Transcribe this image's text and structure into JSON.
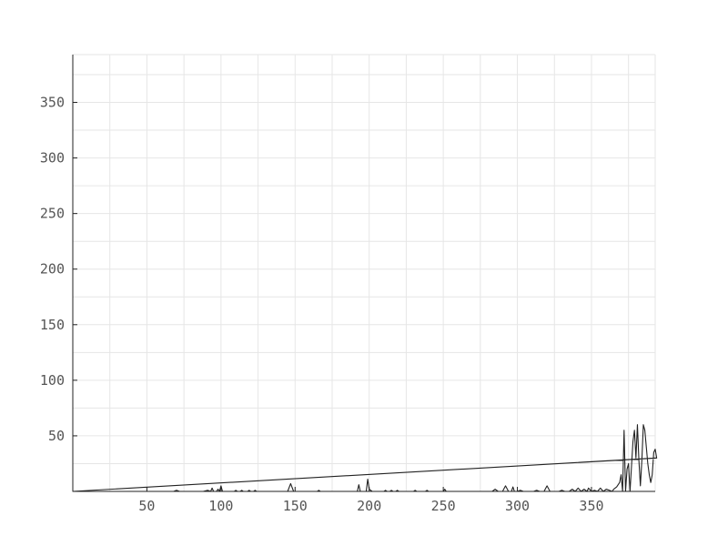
{
  "chart_data": {
    "type": "line",
    "title": "",
    "xlabel": "",
    "ylabel": "",
    "xlim": [
      0,
      393
    ],
    "ylim": [
      0,
      393
    ],
    "grid": true,
    "x_ticks": [
      50,
      100,
      150,
      200,
      250,
      300,
      350
    ],
    "y_ticks": [
      50,
      100,
      150,
      200,
      250,
      300,
      350
    ],
    "line_color": "#222222",
    "series": [
      {
        "points": [
          [
            0,
            0
          ],
          [
            68,
            0
          ],
          [
            70,
            1
          ],
          [
            72,
            0
          ],
          [
            88,
            0
          ],
          [
            91,
            1
          ],
          [
            93,
            0
          ],
          [
            94,
            3
          ],
          [
            95,
            0
          ],
          [
            97,
            0
          ],
          [
            98,
            2
          ],
          [
            99,
            0
          ],
          [
            100,
            5
          ],
          [
            101,
            0
          ],
          [
            109,
            0
          ],
          [
            110,
            1
          ],
          [
            111,
            0
          ],
          [
            113,
            0
          ],
          [
            114,
            1
          ],
          [
            115,
            0
          ],
          [
            118,
            0
          ],
          [
            119,
            1
          ],
          [
            120,
            0
          ],
          [
            122,
            0
          ],
          [
            123,
            1
          ],
          [
            124,
            0
          ],
          [
            145,
            0
          ],
          [
            147,
            7
          ],
          [
            149,
            0
          ],
          [
            165,
            0
          ],
          [
            166,
            1
          ],
          [
            167,
            0
          ],
          [
            192,
            0
          ],
          [
            193,
            6
          ],
          [
            194,
            0
          ],
          [
            198,
            0
          ],
          [
            199,
            11
          ],
          [
            200,
            2
          ],
          [
            202,
            0
          ],
          [
            210,
            0
          ],
          [
            211,
            1
          ],
          [
            212,
            0
          ],
          [
            214,
            0
          ],
          [
            215,
            1
          ],
          [
            216,
            0
          ],
          [
            218,
            0
          ],
          [
            219,
            1
          ],
          [
            220,
            0
          ],
          [
            230,
            0
          ],
          [
            231,
            1
          ],
          [
            232,
            0
          ],
          [
            238,
            0
          ],
          [
            239,
            1
          ],
          [
            240,
            0
          ],
          [
            250,
            0
          ],
          [
            251,
            2
          ],
          [
            252,
            0
          ],
          [
            283,
            0
          ],
          [
            285,
            2
          ],
          [
            287,
            0
          ],
          [
            290,
            0
          ],
          [
            292,
            5
          ],
          [
            294,
            0
          ],
          [
            296,
            0
          ],
          [
            297,
            4
          ],
          [
            298,
            0
          ],
          [
            300,
            0
          ],
          [
            302,
            1
          ],
          [
            304,
            0
          ],
          [
            311,
            0
          ],
          [
            313,
            1
          ],
          [
            315,
            0
          ],
          [
            318,
            0
          ],
          [
            320,
            5
          ],
          [
            322,
            0
          ],
          [
            328,
            0
          ],
          [
            330,
            1
          ],
          [
            332,
            0
          ],
          [
            335,
            0
          ],
          [
            337,
            2
          ],
          [
            339,
            0
          ],
          [
            341,
            3
          ],
          [
            343,
            0
          ],
          [
            345,
            2
          ],
          [
            347,
            0
          ],
          [
            348,
            3
          ],
          [
            350,
            0
          ],
          [
            352,
            1
          ],
          [
            354,
            0
          ],
          [
            356,
            3
          ],
          [
            358,
            0
          ],
          [
            360,
            2
          ],
          [
            362,
            1
          ],
          [
            364,
            0
          ],
          [
            365,
            2
          ],
          [
            367,
            4
          ],
          [
            369,
            8
          ],
          [
            370,
            15
          ],
          [
            371,
            0
          ],
          [
            372,
            55
          ],
          [
            373,
            0
          ],
          [
            374,
            20
          ],
          [
            375,
            25
          ],
          [
            376,
            0
          ],
          [
            378,
            45
          ],
          [
            379,
            55
          ],
          [
            380,
            30
          ],
          [
            381,
            60
          ],
          [
            382,
            28
          ],
          [
            383,
            5
          ],
          [
            384,
            28
          ],
          [
            385,
            60
          ],
          [
            386,
            55
          ],
          [
            387,
            40
          ],
          [
            388,
            25
          ],
          [
            389,
            15
          ],
          [
            390,
            8
          ],
          [
            391,
            15
          ],
          [
            392,
            35
          ],
          [
            393,
            38
          ],
          [
            394,
            30
          ],
          [
            0,
            0
          ],
          [
            393,
            30
          ],
          [
            394,
            30
          ]
        ]
      }
    ]
  }
}
